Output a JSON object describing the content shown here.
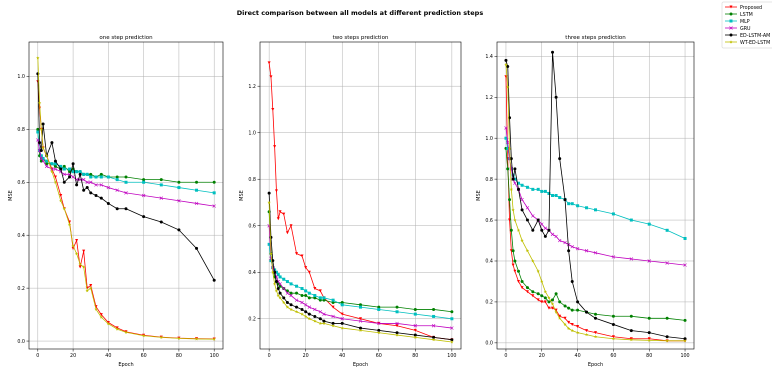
{
  "figure": {
    "title": "Direct comparison between all models at different prediction steps"
  },
  "legend": {
    "placement": "top-right, outside plots",
    "entries": [
      {
        "name": "Proposed",
        "color": "#ff0000",
        "marker": "triangle-down"
      },
      {
        "name": "LSTM",
        "color": "#008000",
        "marker": "circle"
      },
      {
        "name": "MLP",
        "color": "#00bfbf",
        "marker": "square"
      },
      {
        "name": "GRU",
        "color": "#bf00bf",
        "marker": "x"
      },
      {
        "name": "ED-LSTM-AM",
        "color": "#000000",
        "marker": "circle"
      },
      {
        "name": "WT-ED-LSTM",
        "color": "#bfbf00",
        "marker": "star"
      }
    ]
  },
  "chart_data": [
    {
      "type": "line",
      "title": "one step prediction",
      "xlabel": "Epoch",
      "ylabel": "MSE",
      "xlim": [
        -5,
        105
      ],
      "ylim": [
        -0.03,
        1.13
      ],
      "xticks": [
        0,
        20,
        40,
        60,
        80,
        100
      ],
      "yticks": [
        0.0,
        0.2,
        0.4,
        0.6,
        0.8,
        1.0
      ],
      "ytick_labels": [
        "0.0",
        "0.2",
        "0.4",
        "0.6",
        "0.8",
        "1.0"
      ],
      "grid": true,
      "x": [
        0,
        1,
        2,
        3,
        5,
        8,
        10,
        13,
        15,
        18,
        20,
        22,
        24,
        26,
        28,
        30,
        33,
        36,
        40,
        45,
        50,
        60,
        70,
        80,
        90,
        100
      ],
      "series": [
        {
          "name": "Proposed",
          "values": [
            0.98,
            0.88,
            0.8,
            0.73,
            0.7,
            0.65,
            0.62,
            0.55,
            0.5,
            0.45,
            0.35,
            0.38,
            0.28,
            0.34,
            0.2,
            0.21,
            0.13,
            0.1,
            0.07,
            0.05,
            0.035,
            0.022,
            0.015,
            0.011,
            0.009,
            0.008
          ]
        },
        {
          "name": "LSTM",
          "values": [
            0.8,
            0.7,
            0.68,
            0.69,
            0.67,
            0.67,
            0.66,
            0.65,
            0.66,
            0.64,
            0.65,
            0.64,
            0.64,
            0.63,
            0.63,
            0.63,
            0.62,
            0.63,
            0.62,
            0.62,
            0.62,
            0.61,
            0.61,
            0.6,
            0.6,
            0.6
          ]
        },
        {
          "name": "MLP",
          "values": [
            0.79,
            0.72,
            0.7,
            0.69,
            0.68,
            0.67,
            0.67,
            0.66,
            0.65,
            0.65,
            0.64,
            0.64,
            0.64,
            0.63,
            0.63,
            0.62,
            0.62,
            0.62,
            0.62,
            0.61,
            0.6,
            0.6,
            0.59,
            0.58,
            0.57,
            0.56
          ]
        },
        {
          "name": "GRU",
          "values": [
            0.76,
            0.72,
            0.69,
            0.68,
            0.66,
            0.65,
            0.65,
            0.64,
            0.63,
            0.63,
            0.62,
            0.61,
            0.61,
            0.61,
            0.6,
            0.6,
            0.59,
            0.59,
            0.58,
            0.57,
            0.56,
            0.55,
            0.54,
            0.53,
            0.52,
            0.51
          ]
        },
        {
          "name": "ED-LSTM-AM",
          "values": [
            1.01,
            0.75,
            0.72,
            0.82,
            0.7,
            0.75,
            0.68,
            0.65,
            0.6,
            0.62,
            0.67,
            0.59,
            0.63,
            0.57,
            0.58,
            0.56,
            0.55,
            0.54,
            0.52,
            0.5,
            0.5,
            0.47,
            0.45,
            0.42,
            0.35,
            0.23
          ]
        },
        {
          "name": "WT-ED-LSTM",
          "values": [
            1.07,
            0.9,
            0.8,
            0.73,
            0.7,
            0.64,
            0.6,
            0.53,
            0.5,
            0.44,
            0.36,
            0.33,
            0.29,
            0.28,
            0.19,
            0.2,
            0.12,
            0.09,
            0.065,
            0.045,
            0.033,
            0.02,
            0.014,
            0.01,
            0.008,
            0.007
          ]
        }
      ]
    },
    {
      "type": "line",
      "title": "two steps prediction",
      "xlabel": "Epoch",
      "ylabel": "MSE",
      "xlim": [
        -5,
        105
      ],
      "ylim": [
        0.07,
        1.39
      ],
      "xticks": [
        0,
        20,
        40,
        60,
        80,
        100
      ],
      "yticks": [
        0.2,
        0.4,
        0.6,
        0.8,
        1.0,
        1.2
      ],
      "ytick_labels": [
        "0.2",
        "0.4",
        "0.6",
        "0.8",
        "1.0",
        "1.2"
      ],
      "grid": true,
      "x": [
        0,
        1,
        2,
        3,
        4,
        5,
        6,
        8,
        10,
        12,
        15,
        18,
        20,
        22,
        25,
        28,
        30,
        35,
        40,
        50,
        60,
        70,
        80,
        90,
        100
      ],
      "series": [
        {
          "name": "Proposed",
          "values": [
            1.3,
            1.24,
            1.1,
            0.94,
            0.75,
            0.63,
            0.66,
            0.65,
            0.57,
            0.6,
            0.48,
            0.47,
            0.42,
            0.4,
            0.33,
            0.32,
            0.29,
            0.25,
            0.22,
            0.2,
            0.18,
            0.17,
            0.15,
            0.12,
            0.11
          ]
        },
        {
          "name": "LSTM",
          "values": [
            0.66,
            0.48,
            0.42,
            0.38,
            0.36,
            0.35,
            0.34,
            0.33,
            0.32,
            0.31,
            0.31,
            0.3,
            0.3,
            0.29,
            0.29,
            0.28,
            0.28,
            0.27,
            0.27,
            0.26,
            0.25,
            0.25,
            0.24,
            0.24,
            0.23
          ]
        },
        {
          "name": "MLP",
          "values": [
            0.52,
            0.45,
            0.42,
            0.41,
            0.4,
            0.39,
            0.38,
            0.37,
            0.36,
            0.35,
            0.34,
            0.33,
            0.32,
            0.31,
            0.3,
            0.29,
            0.29,
            0.28,
            0.26,
            0.25,
            0.24,
            0.23,
            0.22,
            0.21,
            0.2
          ]
        },
        {
          "name": "GRU",
          "values": [
            0.6,
            0.46,
            0.42,
            0.4,
            0.38,
            0.36,
            0.35,
            0.33,
            0.31,
            0.3,
            0.28,
            0.27,
            0.26,
            0.25,
            0.24,
            0.23,
            0.22,
            0.21,
            0.2,
            0.19,
            0.18,
            0.18,
            0.17,
            0.17,
            0.16
          ]
        },
        {
          "name": "ED-LSTM-AM",
          "values": [
            0.74,
            0.55,
            0.45,
            0.4,
            0.36,
            0.33,
            0.31,
            0.29,
            0.27,
            0.26,
            0.25,
            0.24,
            0.23,
            0.22,
            0.21,
            0.2,
            0.19,
            0.18,
            0.18,
            0.16,
            0.15,
            0.14,
            0.13,
            0.12,
            0.11
          ]
        },
        {
          "name": "WT-ED-LSTM",
          "values": [
            0.7,
            0.48,
            0.4,
            0.35,
            0.32,
            0.3,
            0.29,
            0.27,
            0.25,
            0.24,
            0.23,
            0.22,
            0.21,
            0.2,
            0.19,
            0.18,
            0.18,
            0.17,
            0.16,
            0.15,
            0.14,
            0.13,
            0.12,
            0.11,
            0.1
          ]
        }
      ]
    },
    {
      "type": "line",
      "title": "three steps prediction",
      "xlabel": "Epoch",
      "ylabel": "MSE",
      "xlim": [
        -5,
        105
      ],
      "ylim": [
        -0.03,
        1.47
      ],
      "xticks": [
        0,
        20,
        40,
        60,
        80,
        100
      ],
      "yticks": [
        0.0,
        0.2,
        0.4,
        0.6,
        0.8,
        1.0,
        1.2,
        1.4
      ],
      "ytick_labels": [
        "0.0",
        "0.2",
        "0.4",
        "0.6",
        "0.8",
        "1.0",
        "1.2",
        "1.4"
      ],
      "grid": true,
      "x": [
        0,
        1,
        2,
        3,
        4,
        5,
        7,
        9,
        12,
        15,
        18,
        20,
        22,
        24,
        26,
        28,
        30,
        33,
        35,
        37,
        40,
        45,
        50,
        60,
        70,
        80,
        90,
        100
      ],
      "series": [
        {
          "name": "Proposed",
          "values": [
            1.3,
            0.9,
            0.6,
            0.45,
            0.38,
            0.35,
            0.3,
            0.27,
            0.25,
            0.23,
            0.21,
            0.2,
            0.2,
            0.17,
            0.17,
            0.16,
            0.13,
            0.12,
            0.1,
            0.09,
            0.08,
            0.06,
            0.05,
            0.03,
            0.02,
            0.02,
            0.01,
            0.01
          ]
        },
        {
          "name": "LSTM",
          "values": [
            0.95,
            0.85,
            0.7,
            0.55,
            0.45,
            0.4,
            0.35,
            0.3,
            0.27,
            0.25,
            0.24,
            0.23,
            0.22,
            0.2,
            0.21,
            0.24,
            0.2,
            0.18,
            0.17,
            0.16,
            0.16,
            0.15,
            0.14,
            0.13,
            0.13,
            0.12,
            0.12,
            0.11
          ]
        },
        {
          "name": "MLP",
          "values": [
            1.0,
            0.95,
            0.9,
            0.85,
            0.82,
            0.8,
            0.78,
            0.77,
            0.76,
            0.75,
            0.75,
            0.74,
            0.74,
            0.73,
            0.72,
            0.72,
            0.71,
            0.7,
            0.68,
            0.68,
            0.67,
            0.66,
            0.65,
            0.63,
            0.6,
            0.58,
            0.55,
            0.51
          ]
        },
        {
          "name": "GRU",
          "values": [
            1.05,
            0.98,
            0.9,
            0.85,
            0.8,
            0.78,
            0.75,
            0.7,
            0.66,
            0.62,
            0.6,
            0.58,
            0.56,
            0.55,
            0.53,
            0.52,
            0.5,
            0.49,
            0.48,
            0.47,
            0.46,
            0.45,
            0.44,
            0.42,
            0.41,
            0.4,
            0.39,
            0.38
          ]
        },
        {
          "name": "ED-LSTM-AM",
          "values": [
            1.38,
            1.35,
            1.1,
            0.9,
            0.8,
            0.85,
            0.75,
            0.65,
            0.6,
            0.55,
            0.6,
            0.55,
            0.52,
            0.55,
            1.42,
            1.2,
            0.9,
            0.7,
            0.45,
            0.3,
            0.2,
            0.15,
            0.12,
            0.09,
            0.06,
            0.05,
            0.03,
            0.02
          ]
        },
        {
          "name": "WT-ED-LSTM",
          "values": [
            1.36,
            1.25,
            0.95,
            0.75,
            0.65,
            0.6,
            0.55,
            0.5,
            0.45,
            0.4,
            0.35,
            0.3,
            0.25,
            0.22,
            0.19,
            0.15,
            0.12,
            0.09,
            0.07,
            0.06,
            0.05,
            0.04,
            0.03,
            0.02,
            0.015,
            0.012,
            0.01,
            0.01
          ]
        }
      ]
    }
  ]
}
